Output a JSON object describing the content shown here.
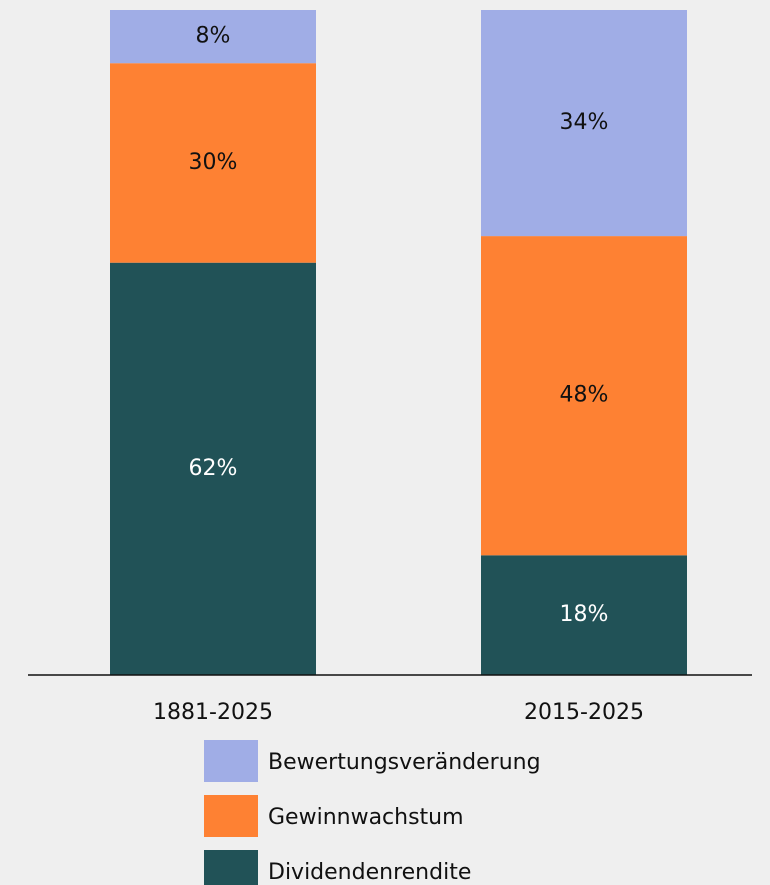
{
  "chart_data": {
    "type": "stacked_bar",
    "categories": [
      "1881-2025",
      "2015-2025"
    ],
    "ylim": [
      0,
      100
    ],
    "series": [
      {
        "name": "Dividendenrendite",
        "color": "#215257",
        "label_color": "#ffffff",
        "values": [
          62,
          18
        ],
        "value_labels": [
          "62%",
          "18%"
        ]
      },
      {
        "name": "Gewinnwachstum",
        "color": "#fe8133",
        "label_color": "#111111",
        "values": [
          30,
          48
        ],
        "value_labels": [
          "30%",
          "48%"
        ]
      },
      {
        "name": "Bewertungsveränderung",
        "color": "#a0ade6",
        "label_color": "#111111",
        "values": [
          8,
          34
        ],
        "value_labels": [
          "8%",
          "34%"
        ]
      }
    ]
  }
}
